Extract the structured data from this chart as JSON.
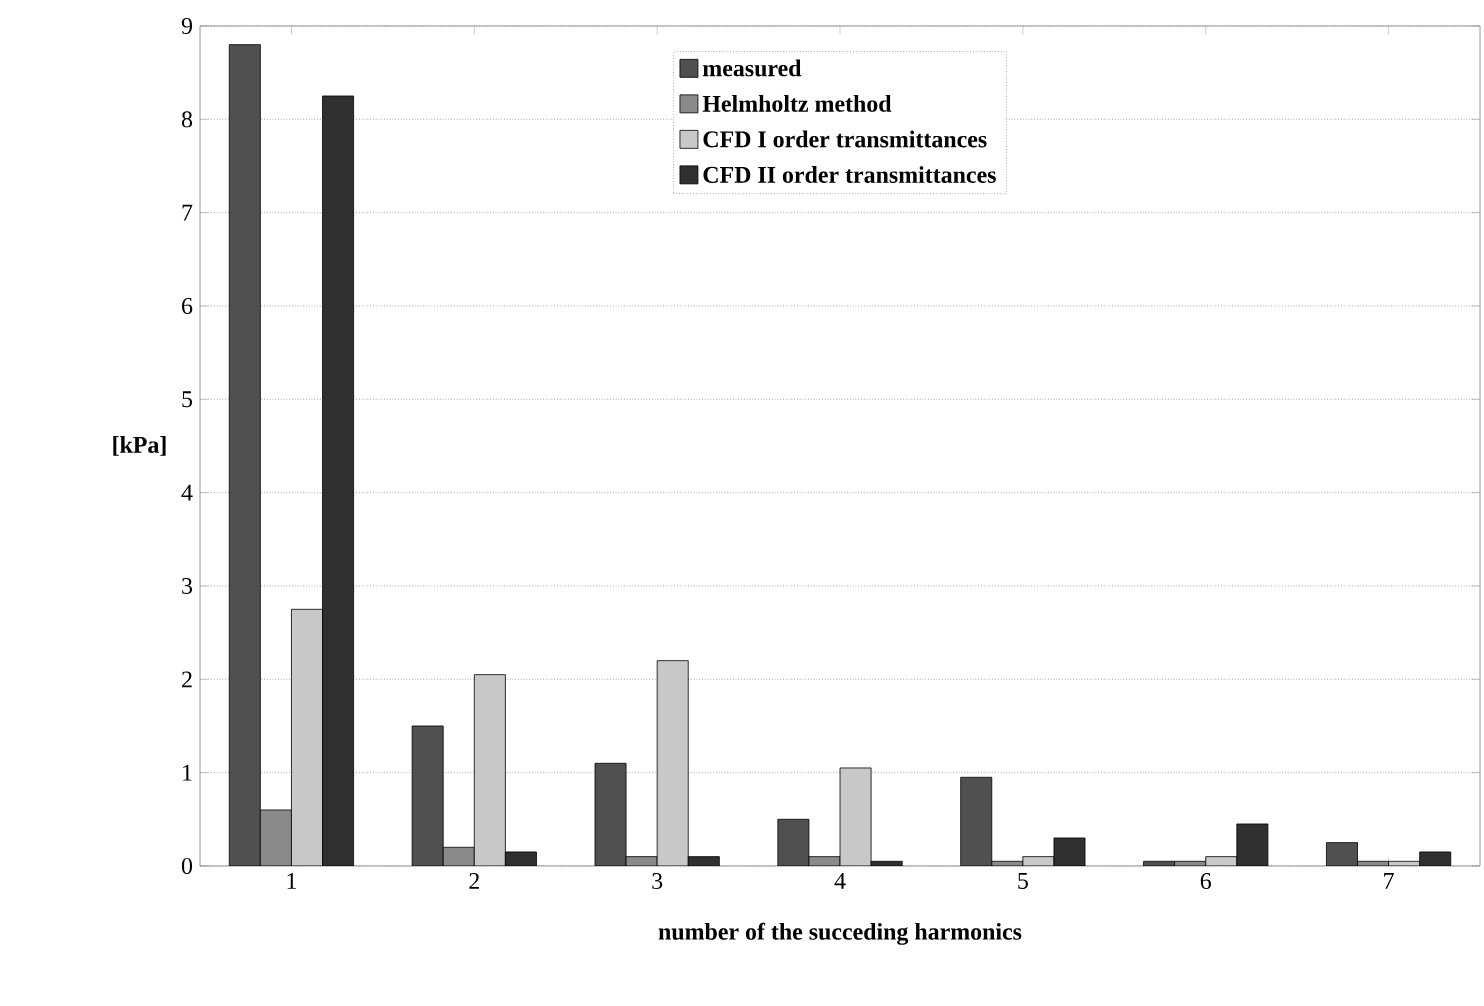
{
  "chart_data": {
    "type": "bar",
    "xlabel": "number of the succeding harmonics",
    "ylabel": "[kPa]",
    "categories": [
      "1",
      "2",
      "3",
      "4",
      "5",
      "6",
      "7"
    ],
    "series": [
      {
        "name": "measured",
        "color": "#505050",
        "values": [
          8.8,
          1.5,
          1.1,
          0.5,
          0.95,
          0.05,
          0.25
        ]
      },
      {
        "name": "Helmholtz method",
        "color": "#8a8a8a",
        "values": [
          0.6,
          0.2,
          0.1,
          0.1,
          0.05,
          0.05,
          0.05
        ]
      },
      {
        "name": "CFD I order transmittances",
        "color": "#c8c8c8",
        "values": [
          2.75,
          2.05,
          2.2,
          1.05,
          0.1,
          0.1,
          0.05
        ]
      },
      {
        "name": "CFD II order transmittances",
        "color": "#303030",
        "values": [
          8.25,
          0.15,
          0.1,
          0.05,
          0.3,
          0.45,
          0.15
        ]
      }
    ],
    "ylim": [
      0,
      9
    ],
    "yticks": [
      0,
      1,
      2,
      3,
      4,
      5,
      6,
      7,
      8,
      9
    ],
    "grid": "y",
    "legend": "top"
  }
}
